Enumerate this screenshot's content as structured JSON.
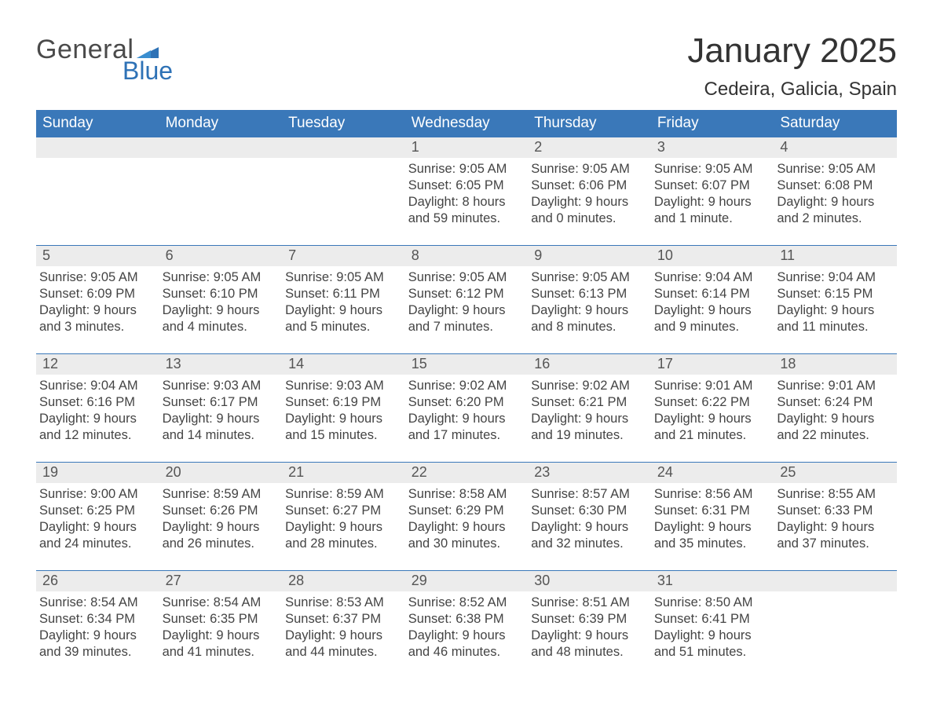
{
  "brand": {
    "word1": "General",
    "word2": "Blue",
    "flag_color": "#2e72b6"
  },
  "title": "January 2025",
  "location": "Cedeira, Galicia, Spain",
  "colors": {
    "header_bg": "#3a78b9",
    "header_text": "#ffffff",
    "daynum_bg": "#ececec",
    "row_divider": "#3a78b9",
    "body_text": "#444444",
    "title_text": "#333333",
    "page_bg": "#ffffff"
  },
  "typography": {
    "title_fontsize": 44,
    "location_fontsize": 24,
    "dow_fontsize": 19,
    "cell_fontsize": 16.5
  },
  "calendar": {
    "type": "month-grid",
    "days_of_week": [
      "Sunday",
      "Monday",
      "Tuesday",
      "Wednesday",
      "Thursday",
      "Friday",
      "Saturday"
    ],
    "weeks": [
      [
        null,
        null,
        null,
        {
          "n": "1",
          "sunrise": "9:05 AM",
          "sunset": "6:05 PM",
          "daylight": "8 hours and 59 minutes."
        },
        {
          "n": "2",
          "sunrise": "9:05 AM",
          "sunset": "6:06 PM",
          "daylight": "9 hours and 0 minutes."
        },
        {
          "n": "3",
          "sunrise": "9:05 AM",
          "sunset": "6:07 PM",
          "daylight": "9 hours and 1 minute."
        },
        {
          "n": "4",
          "sunrise": "9:05 AM",
          "sunset": "6:08 PM",
          "daylight": "9 hours and 2 minutes."
        }
      ],
      [
        {
          "n": "5",
          "sunrise": "9:05 AM",
          "sunset": "6:09 PM",
          "daylight": "9 hours and 3 minutes."
        },
        {
          "n": "6",
          "sunrise": "9:05 AM",
          "sunset": "6:10 PM",
          "daylight": "9 hours and 4 minutes."
        },
        {
          "n": "7",
          "sunrise": "9:05 AM",
          "sunset": "6:11 PM",
          "daylight": "9 hours and 5 minutes."
        },
        {
          "n": "8",
          "sunrise": "9:05 AM",
          "sunset": "6:12 PM",
          "daylight": "9 hours and 7 minutes."
        },
        {
          "n": "9",
          "sunrise": "9:05 AM",
          "sunset": "6:13 PM",
          "daylight": "9 hours and 8 minutes."
        },
        {
          "n": "10",
          "sunrise": "9:04 AM",
          "sunset": "6:14 PM",
          "daylight": "9 hours and 9 minutes."
        },
        {
          "n": "11",
          "sunrise": "9:04 AM",
          "sunset": "6:15 PM",
          "daylight": "9 hours and 11 minutes."
        }
      ],
      [
        {
          "n": "12",
          "sunrise": "9:04 AM",
          "sunset": "6:16 PM",
          "daylight": "9 hours and 12 minutes."
        },
        {
          "n": "13",
          "sunrise": "9:03 AM",
          "sunset": "6:17 PM",
          "daylight": "9 hours and 14 minutes."
        },
        {
          "n": "14",
          "sunrise": "9:03 AM",
          "sunset": "6:19 PM",
          "daylight": "9 hours and 15 minutes."
        },
        {
          "n": "15",
          "sunrise": "9:02 AM",
          "sunset": "6:20 PM",
          "daylight": "9 hours and 17 minutes."
        },
        {
          "n": "16",
          "sunrise": "9:02 AM",
          "sunset": "6:21 PM",
          "daylight": "9 hours and 19 minutes."
        },
        {
          "n": "17",
          "sunrise": "9:01 AM",
          "sunset": "6:22 PM",
          "daylight": "9 hours and 21 minutes."
        },
        {
          "n": "18",
          "sunrise": "9:01 AM",
          "sunset": "6:24 PM",
          "daylight": "9 hours and 22 minutes."
        }
      ],
      [
        {
          "n": "19",
          "sunrise": "9:00 AM",
          "sunset": "6:25 PM",
          "daylight": "9 hours and 24 minutes."
        },
        {
          "n": "20",
          "sunrise": "8:59 AM",
          "sunset": "6:26 PM",
          "daylight": "9 hours and 26 minutes."
        },
        {
          "n": "21",
          "sunrise": "8:59 AM",
          "sunset": "6:27 PM",
          "daylight": "9 hours and 28 minutes."
        },
        {
          "n": "22",
          "sunrise": "8:58 AM",
          "sunset": "6:29 PM",
          "daylight": "9 hours and 30 minutes."
        },
        {
          "n": "23",
          "sunrise": "8:57 AM",
          "sunset": "6:30 PM",
          "daylight": "9 hours and 32 minutes."
        },
        {
          "n": "24",
          "sunrise": "8:56 AM",
          "sunset": "6:31 PM",
          "daylight": "9 hours and 35 minutes."
        },
        {
          "n": "25",
          "sunrise": "8:55 AM",
          "sunset": "6:33 PM",
          "daylight": "9 hours and 37 minutes."
        }
      ],
      [
        {
          "n": "26",
          "sunrise": "8:54 AM",
          "sunset": "6:34 PM",
          "daylight": "9 hours and 39 minutes."
        },
        {
          "n": "27",
          "sunrise": "8:54 AM",
          "sunset": "6:35 PM",
          "daylight": "9 hours and 41 minutes."
        },
        {
          "n": "28",
          "sunrise": "8:53 AM",
          "sunset": "6:37 PM",
          "daylight": "9 hours and 44 minutes."
        },
        {
          "n": "29",
          "sunrise": "8:52 AM",
          "sunset": "6:38 PM",
          "daylight": "9 hours and 46 minutes."
        },
        {
          "n": "30",
          "sunrise": "8:51 AM",
          "sunset": "6:39 PM",
          "daylight": "9 hours and 48 minutes."
        },
        {
          "n": "31",
          "sunrise": "8:50 AM",
          "sunset": "6:41 PM",
          "daylight": "9 hours and 51 minutes."
        },
        null
      ]
    ],
    "labels": {
      "sunrise": "Sunrise",
      "sunset": "Sunset",
      "daylight": "Daylight"
    }
  }
}
